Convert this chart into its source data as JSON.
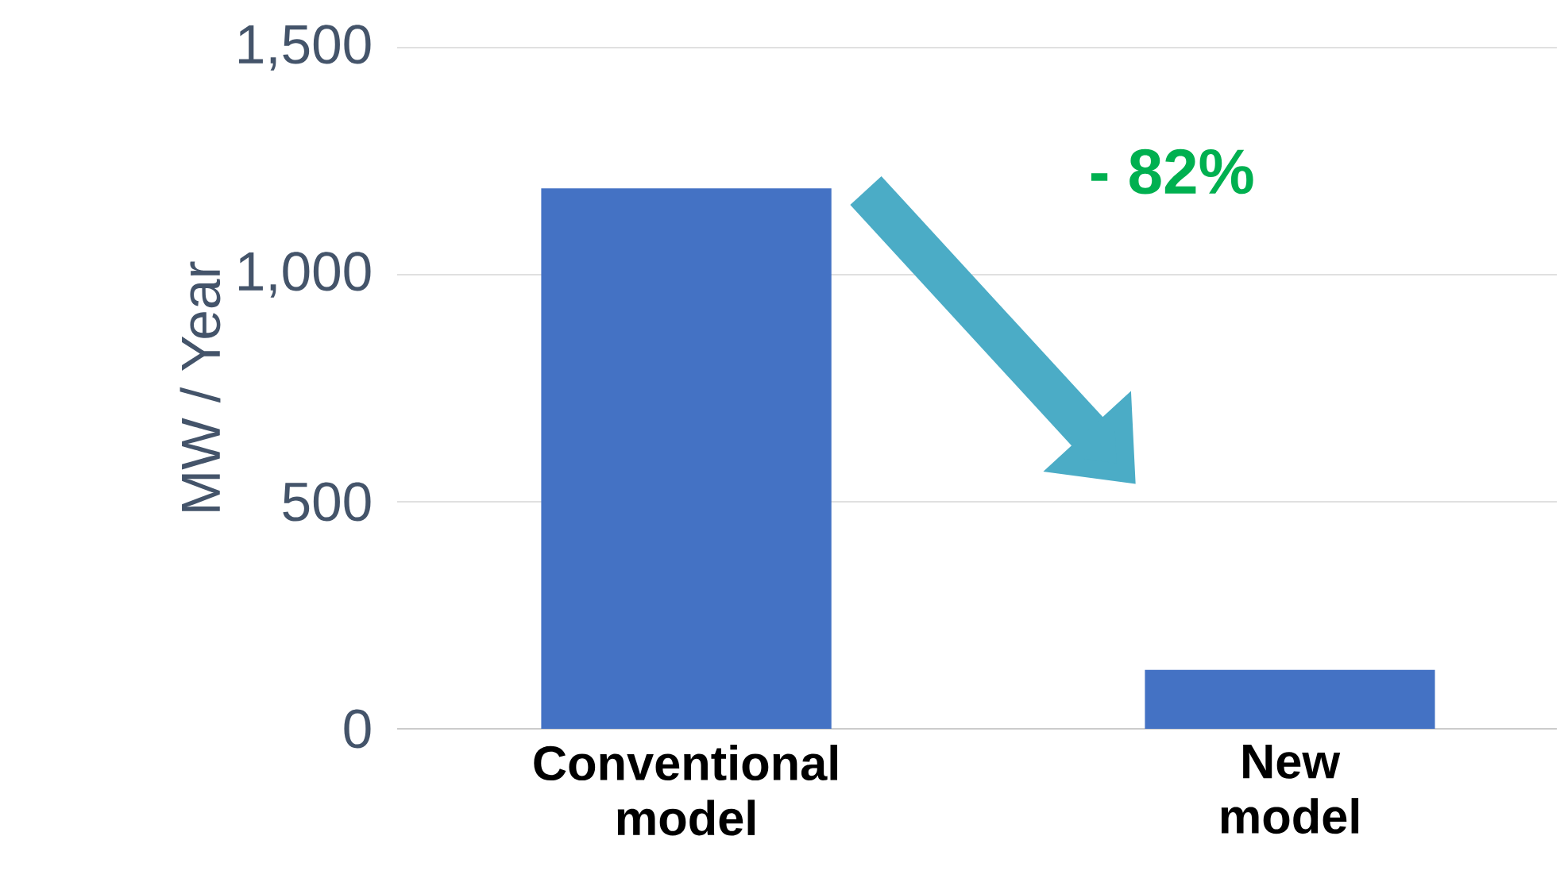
{
  "chart_data": {
    "type": "bar",
    "ylabel": "MW / Year",
    "categories": [
      "Conventional model",
      "New model"
    ],
    "values": [
      1190,
      130
    ],
    "color": "#4472c4",
    "ylim": [
      0,
      1500
    ],
    "yticks": [
      0,
      500,
      {
        "value": 1000,
        "label": "1,000"
      },
      {
        "value": 1500,
        "label": "1,500"
      }
    ],
    "grid": "y",
    "annotations": [
      "- 82%"
    ]
  }
}
